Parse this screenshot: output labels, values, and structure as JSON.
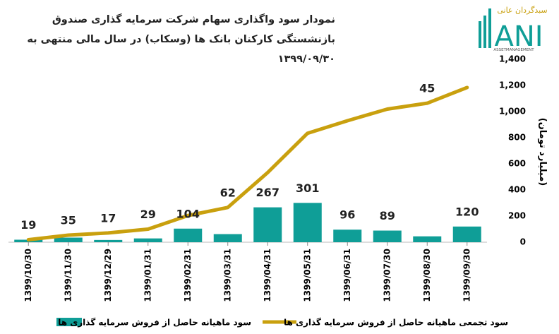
{
  "chart_data": {
    "type": "bar-line",
    "title": "نمودار سود واگذاری سهام شرکت سرمایه گذاری صندوق بازنشستگی کارکنان بانک ها (وسکاب) در سال مالی منتهی به ۱۳۹۹/۰۹/۳۰",
    "logo": {
      "brand": "سبدگردان عانی",
      "name": "ANI",
      "tagline": "ASSETMANAGEMENT"
    },
    "y_label": "(میلیارد تومان)",
    "categories": [
      "1399/10/30",
      "1399/11/30",
      "1399/12/29",
      "1399/01/31",
      "1399/02/31",
      "1399/03/31",
      "1399/04/31",
      "1399/05/31",
      "1399/06/31",
      "1399/07/30",
      "1399/08/30",
      "1399/09/30"
    ],
    "series": [
      {
        "name": "سود ماهیانه حاصل از فروش سرمایه گذاری ها",
        "type": "bar",
        "color": "#0f9e97",
        "values": [
          19,
          35,
          17,
          29,
          104,
          62,
          267,
          301,
          96,
          89,
          45,
          120
        ]
      },
      {
        "name": "سود تجمعی ماهیانه حاصل از فروش سرمایه گذاری ها",
        "type": "line",
        "color": "#c9a00e",
        "values": [
          19,
          54,
          71,
          100,
          204,
          266,
          533,
          834,
          930,
          1019,
          1064,
          1184
        ]
      }
    ],
    "ylim": [
      0,
      1400
    ],
    "yticks": [
      0,
      200,
      400,
      600,
      800,
      {
        "value": 1000,
        "label": "1,000"
      },
      {
        "value": 1200,
        "label": "1,200"
      },
      {
        "value": 1400,
        "label": "1,400"
      }
    ]
  }
}
